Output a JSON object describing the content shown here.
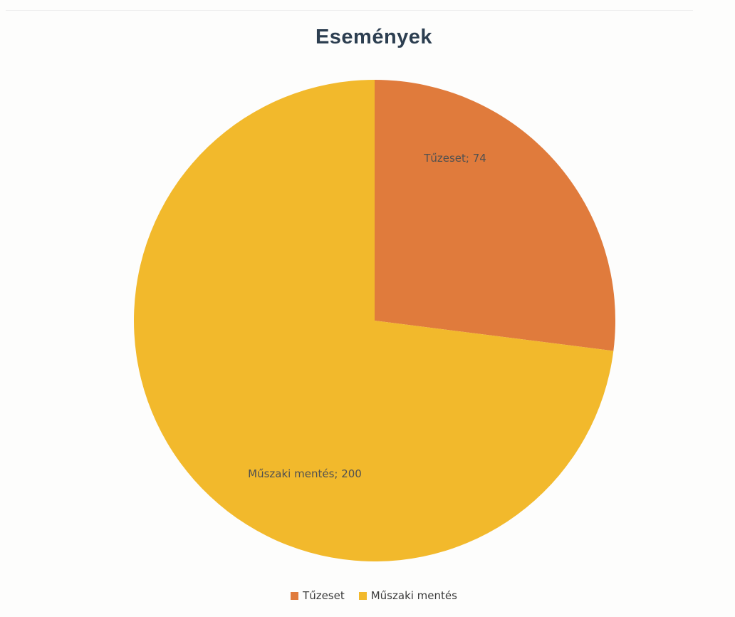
{
  "chart_data": {
    "type": "pie",
    "title": "Események",
    "categories": [
      "Tűzeset",
      "Műszaki mentés"
    ],
    "values": [
      74,
      200
    ],
    "data_labels": [
      "Tűzeset; 74",
      "Műszaki mentés; 200"
    ],
    "colors": [
      "#e07b3c",
      "#f2b92c"
    ],
    "start_angle_deg": 0,
    "direction": "clockwise",
    "legend": {
      "placement": "bottom",
      "entries": [
        "Tűzeset",
        "Műszaki mentés"
      ]
    }
  }
}
